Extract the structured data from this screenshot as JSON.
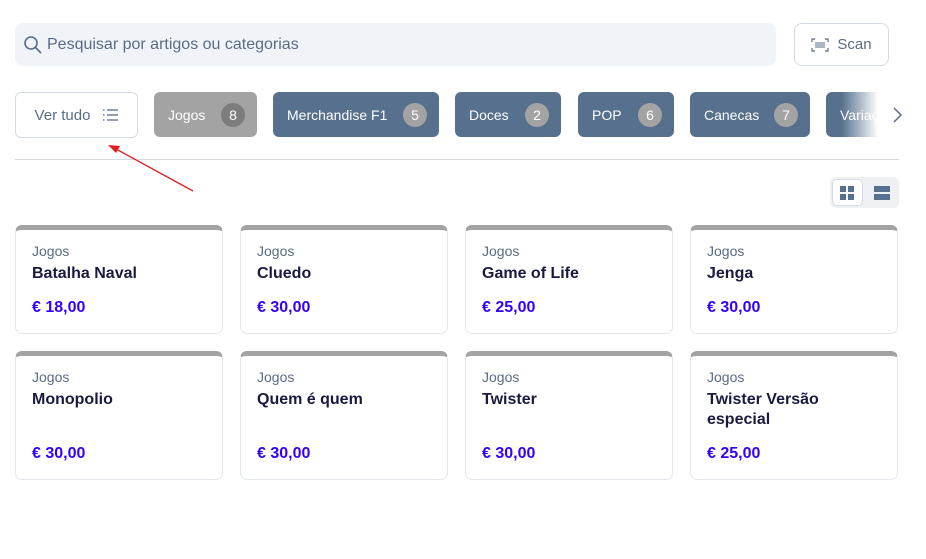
{
  "search": {
    "placeholder": "Pesquisar por artigos ou categorias",
    "icon": "search-icon"
  },
  "scan": {
    "label": "Scan",
    "icon": "barcode-icon"
  },
  "view_all": {
    "label": "Ver tudo",
    "icon": "list-icon"
  },
  "categories": [
    {
      "label": "Jogos",
      "count": "8",
      "active": true
    },
    {
      "label": "Merchandise F1",
      "count": "5"
    },
    {
      "label": "Doces",
      "count": "2"
    },
    {
      "label": "POP",
      "count": "6"
    },
    {
      "label": "Canecas",
      "count": "7"
    },
    {
      "label": "Variaç"
    }
  ],
  "view_toggle": {
    "selected": "grid",
    "options": [
      "grid",
      "list"
    ]
  },
  "colors": {
    "chip": "#56708d",
    "active_chip": "#a3a3a3",
    "price": "#3300ff",
    "annotation_arrow": "#e02020"
  },
  "products": [
    {
      "category": "Jogos",
      "name": "Batalha Naval",
      "price": "€ 18,00"
    },
    {
      "category": "Jogos",
      "name": "Cluedo",
      "price": "€ 30,00"
    },
    {
      "category": "Jogos",
      "name": "Game of Life",
      "price": "€ 25,00"
    },
    {
      "category": "Jogos",
      "name": "Jenga",
      "price": "€ 30,00"
    },
    {
      "category": "Jogos",
      "name": "Monopolio",
      "price": "€ 30,00"
    },
    {
      "category": "Jogos",
      "name": "Quem é quem",
      "price": "€ 30,00"
    },
    {
      "category": "Jogos",
      "name": "Twister",
      "price": "€ 30,00"
    },
    {
      "category": "Jogos",
      "name": "Twister Versão especial",
      "price": "€ 25,00"
    }
  ]
}
